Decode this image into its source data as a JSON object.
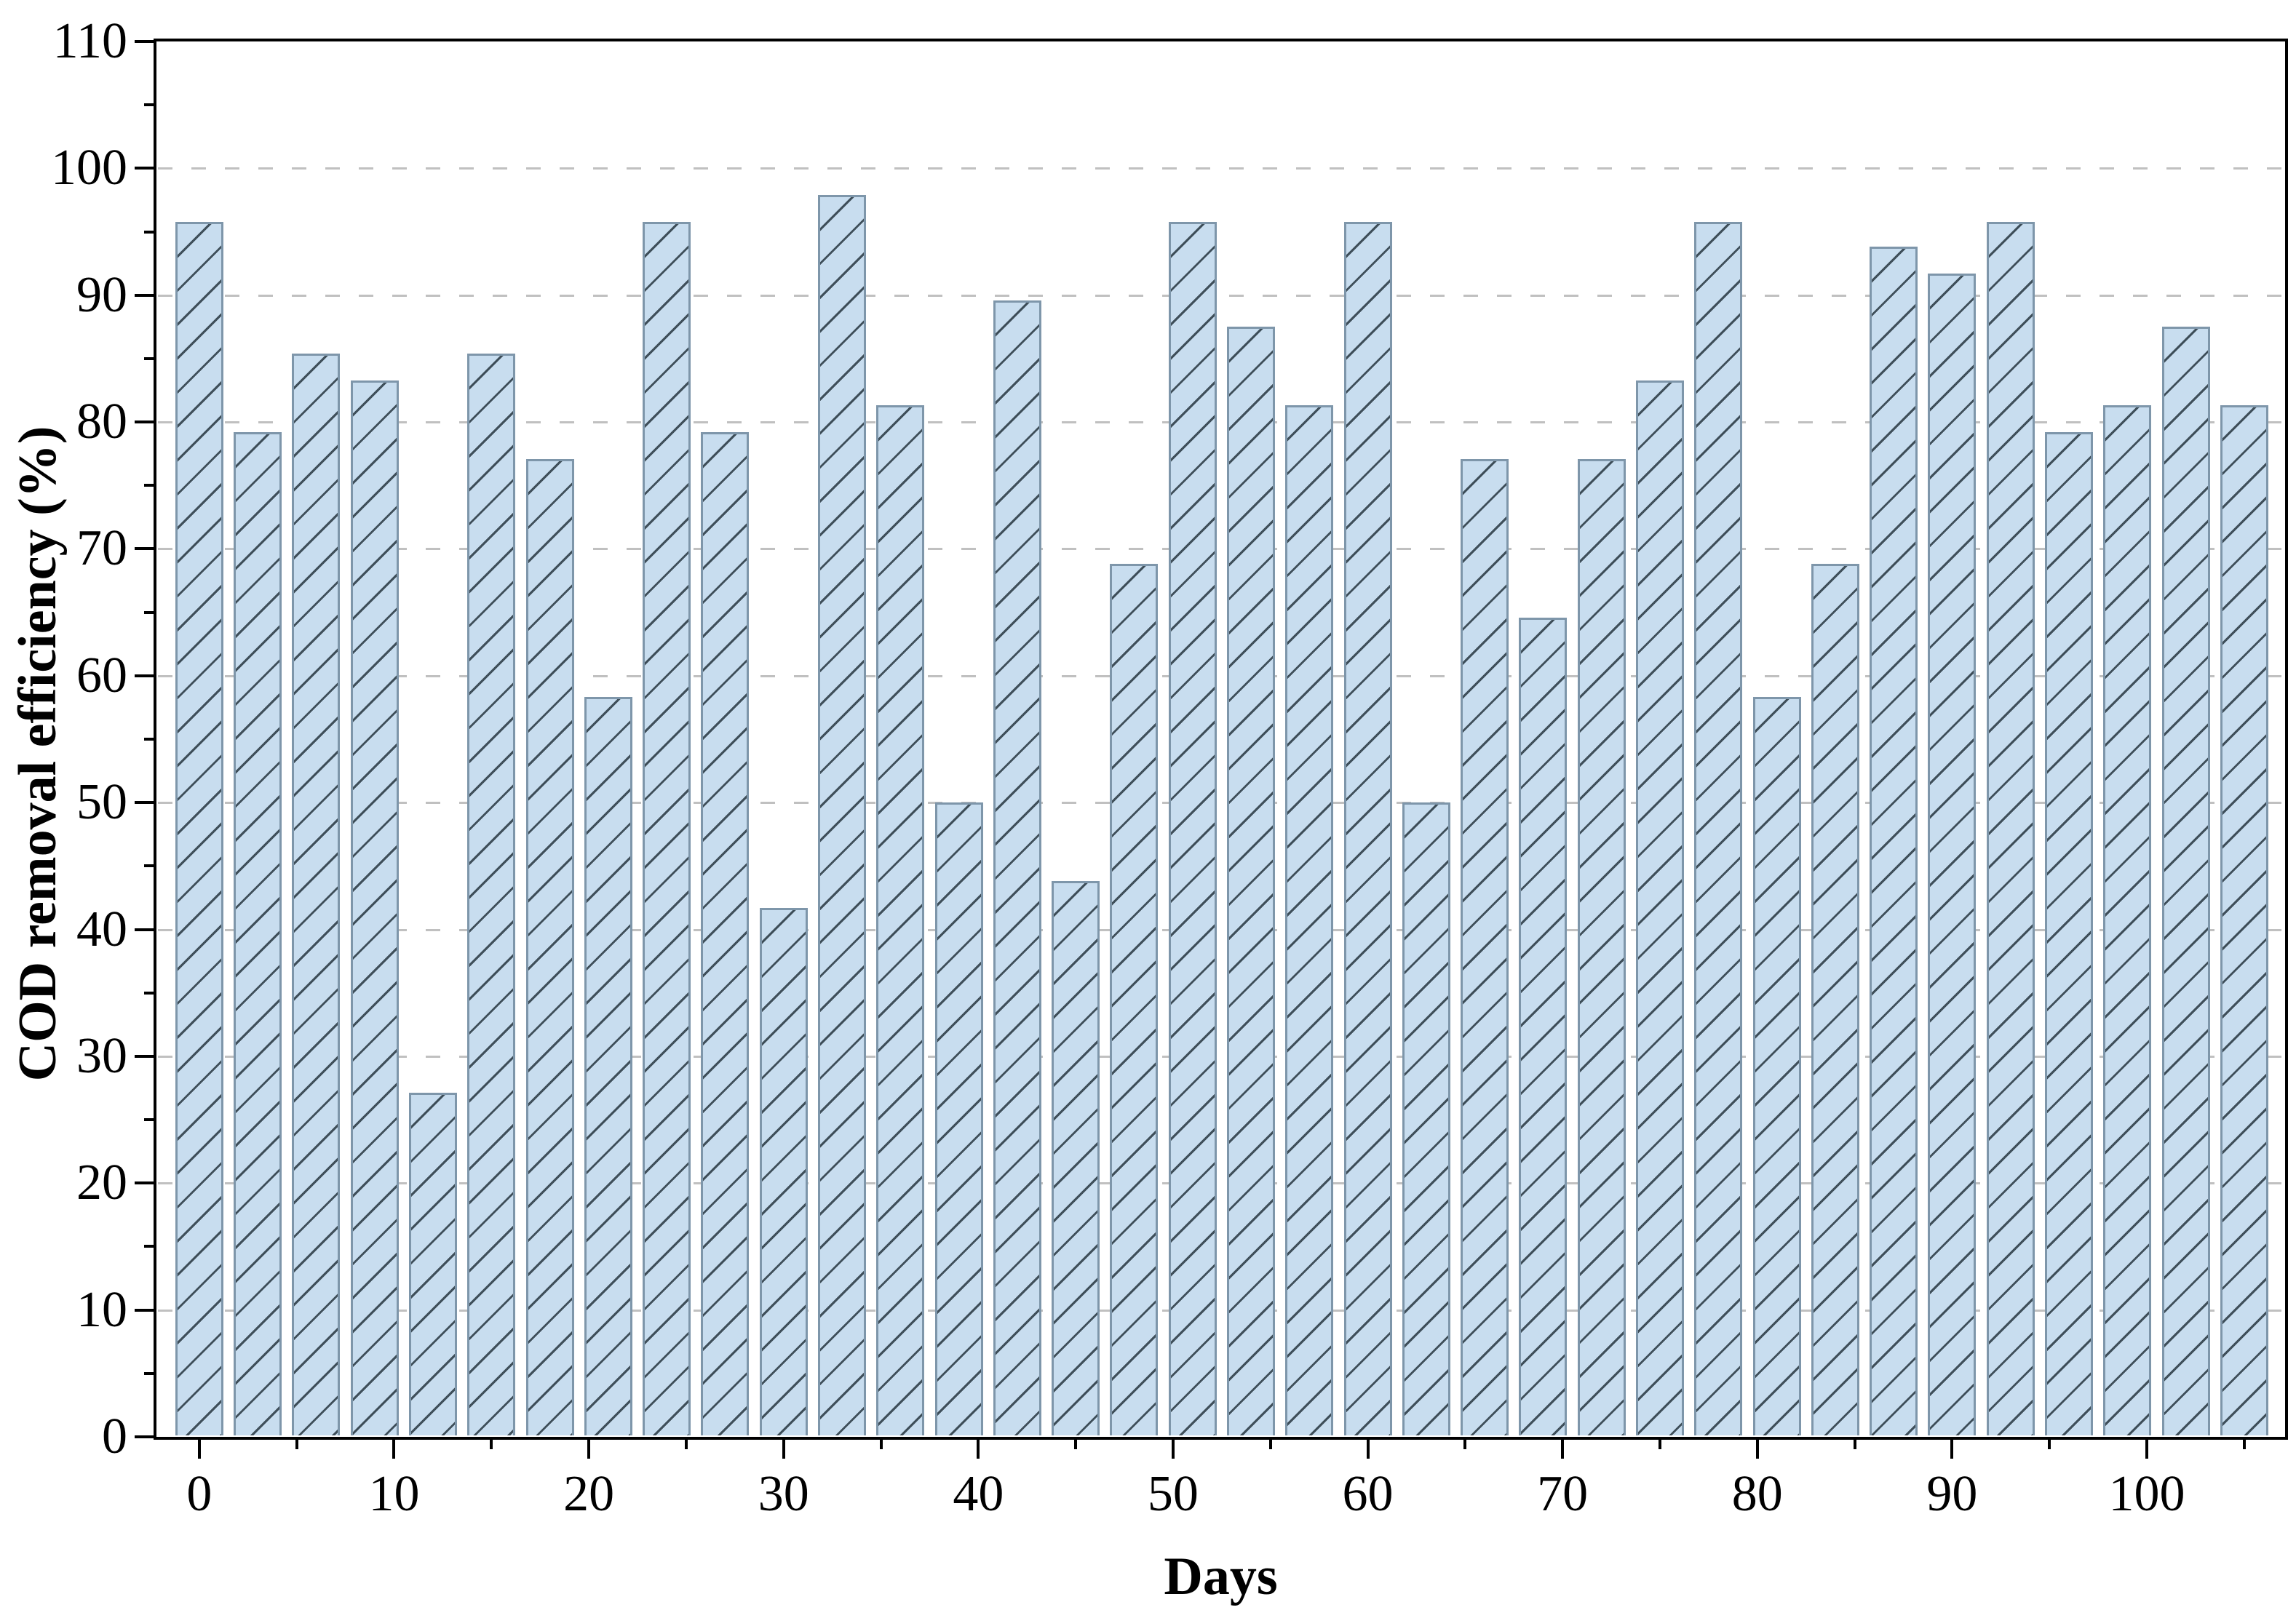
{
  "figure": {
    "background_color": "#ffffff",
    "description": "Hatched bar chart of COD removal efficiency over time"
  },
  "chart_data": {
    "type": "bar",
    "title": "",
    "xlabel": "Days",
    "ylabel": "COD removal efficiency (%)",
    "x": [
      0,
      3,
      6,
      9,
      12,
      15,
      18,
      21,
      24,
      27,
      30,
      33,
      36,
      39,
      42,
      45,
      48,
      51,
      54,
      57,
      60,
      63,
      66,
      69,
      72,
      75,
      78,
      81,
      84,
      87,
      90,
      93,
      96,
      99,
      102,
      105
    ],
    "values": [
      95.8,
      79.2,
      85.4,
      83.3,
      27.1,
      85.4,
      77.1,
      58.3,
      95.8,
      79.2,
      41.7,
      97.9,
      81.3,
      50.0,
      89.6,
      43.8,
      68.8,
      95.8,
      87.5,
      81.3,
      95.8,
      50.0,
      77.1,
      64.6,
      77.1,
      83.3,
      95.8,
      58.3,
      68.8,
      93.8,
      91.7,
      95.8,
      79.2,
      81.3,
      87.5,
      81.3
    ],
    "bar_width_days": 2.45,
    "xlim": [
      -2.2,
      107.1
    ],
    "ylim": [
      0,
      110
    ],
    "x_major_ticks": [
      0,
      10,
      20,
      30,
      40,
      50,
      60,
      70,
      80,
      90,
      100
    ],
    "x_minor_ticks": [
      5,
      15,
      25,
      35,
      45,
      55,
      65,
      75,
      85,
      95,
      105
    ],
    "y_major_ticks": [
      0,
      10,
      20,
      30,
      40,
      50,
      60,
      70,
      80,
      90,
      100,
      110
    ],
    "y_minor_ticks": [
      5,
      15,
      25,
      35,
      45,
      55,
      65,
      75,
      85,
      95,
      105
    ],
    "gridlines_y": [
      10,
      20,
      30,
      40,
      50,
      60,
      70,
      80,
      90,
      100
    ],
    "grid_style": "dashed horizontal",
    "legend": null,
    "hatch_pattern": "diagonal-forward",
    "colors": {
      "bar_fill": "#c8ddef",
      "bar_edge": "#7e96aa",
      "hatch": "#3f4f5a",
      "grid": "#c0c0c0",
      "axis": "#000000",
      "text": "#000000",
      "background": "#ffffff"
    }
  }
}
